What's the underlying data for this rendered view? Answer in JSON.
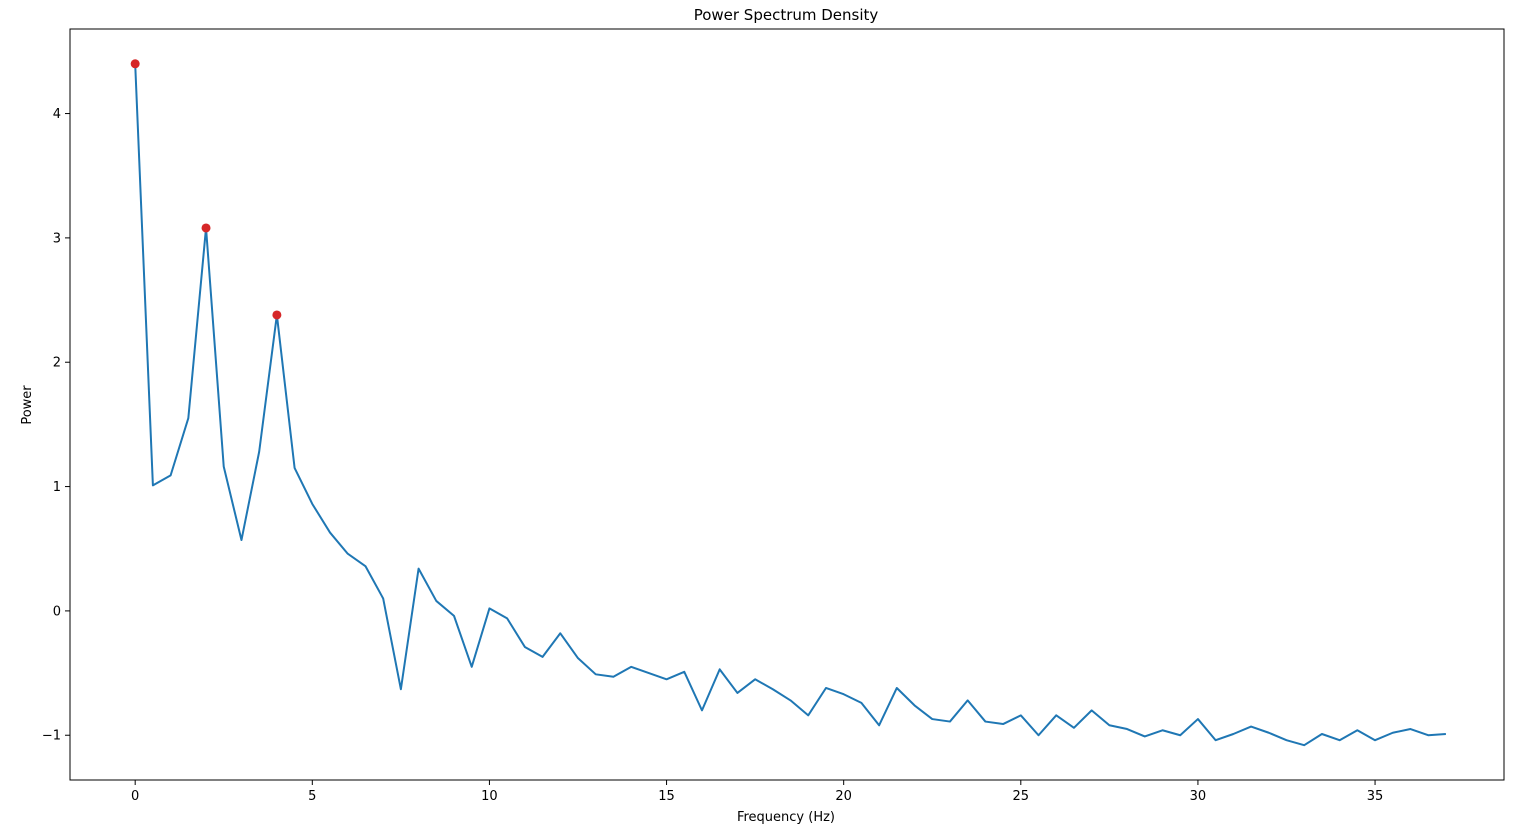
{
  "chart_data": {
    "type": "line",
    "title": "Power Spectrum Density",
    "xlabel": "Frequency (Hz)",
    "ylabel": "Power",
    "xlim": [
      -1.84,
      38.64
    ],
    "ylim": [
      -1.36,
      4.68
    ],
    "xticks": [
      0,
      5,
      10,
      15,
      20,
      25,
      30,
      35
    ],
    "yticks": [
      -1,
      0,
      1,
      2,
      3,
      4
    ],
    "xtick_labels": [
      "0",
      "5",
      "10",
      "15",
      "20",
      "25",
      "30",
      "35"
    ],
    "ytick_labels": [
      "−1",
      "0",
      "1",
      "2",
      "3",
      "4"
    ],
    "grid": false,
    "line_color": "#1f77b4",
    "marker_color": "#d62728",
    "series": [
      {
        "x": [
          0,
          0.5,
          1,
          1.5,
          2,
          2.5,
          3,
          3.5,
          4,
          4.5,
          5,
          5.5,
          6,
          6.5,
          7,
          7.5,
          8,
          8.5,
          9,
          9.5,
          10,
          10.5,
          11,
          11.5,
          12,
          12.5,
          13,
          13.5,
          14,
          14.5,
          15,
          15.5,
          16,
          16.5,
          17,
          17.5,
          18,
          18.5,
          19,
          19.5,
          20,
          20.5,
          21,
          21.5,
          22,
          22.5,
          23,
          23.5,
          24,
          24.5,
          25,
          25.5,
          26,
          26.5,
          27,
          27.5,
          28,
          28.5,
          29,
          29.5,
          30,
          30.5,
          31,
          31.5,
          32,
          32.5,
          33,
          33.5,
          34,
          34.5,
          35,
          35.5,
          36,
          36.5,
          37
        ],
        "values": [
          4.4,
          1.01,
          1.09,
          1.55,
          3.08,
          1.16,
          0.57,
          1.28,
          2.38,
          1.15,
          0.86,
          0.63,
          0.46,
          0.36,
          0.1,
          -0.63,
          0.34,
          0.08,
          -0.04,
          -0.45,
          0.02,
          -0.06,
          -0.29,
          -0.37,
          -0.18,
          -0.38,
          -0.51,
          -0.53,
          -0.45,
          -0.5,
          -0.55,
          -0.49,
          -0.8,
          -0.47,
          -0.66,
          -0.55,
          -0.63,
          -0.72,
          -0.84,
          -0.62,
          -0.67,
          -0.74,
          -0.92,
          -0.62,
          -0.76,
          -0.87,
          -0.89,
          -0.72,
          -0.89,
          -0.91,
          -0.84,
          -1.0,
          -0.84,
          -0.94,
          -0.8,
          -0.92,
          -0.95,
          -1.01,
          -0.96,
          -1.0,
          -0.87,
          -1.04,
          -0.99,
          -0.93,
          -0.98,
          -1.04,
          -1.08,
          -0.99,
          -1.04,
          -0.96,
          -1.04,
          -0.98,
          -0.95,
          -1.0,
          -0.99
        ]
      }
    ],
    "peaks": [
      {
        "x": 0,
        "y": 4.4
      },
      {
        "x": 2,
        "y": 3.08
      },
      {
        "x": 4,
        "y": 2.38
      }
    ]
  }
}
